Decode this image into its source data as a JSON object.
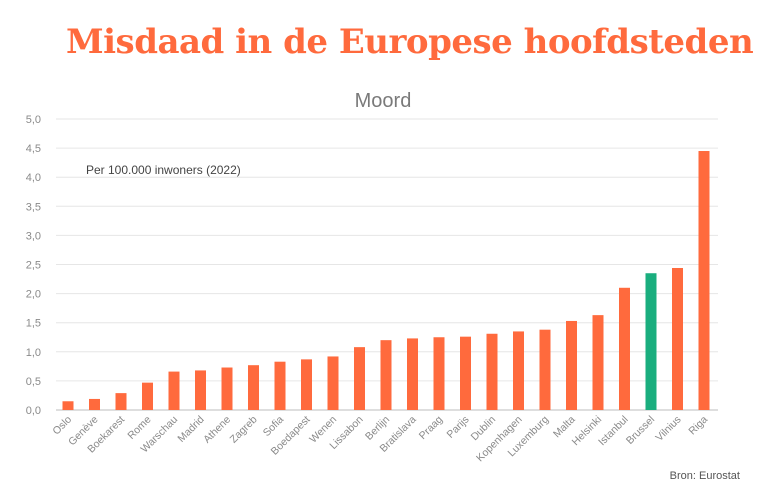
{
  "headline": "Misdaad in de Europese hoofdsteden",
  "source": "Bron: Eurostat",
  "colors": {
    "default_bar": "#ff6a3d",
    "highlight_bar": "#1aae7e",
    "headline": "#ff6a3d"
  },
  "chart_data": {
    "type": "bar",
    "title": "Moord",
    "annotation": "Per 100.000 inwoners (2022)",
    "xlabel": "",
    "ylabel": "",
    "ylim": [
      0,
      5
    ],
    "yticks": [
      "0,0",
      "0,5",
      "1,0",
      "1,5",
      "2,0",
      "2,5",
      "3,0",
      "3,5",
      "4,0",
      "4,5",
      "5,0"
    ],
    "grid": true,
    "highlight": "Brussel",
    "categories": [
      "Oslo",
      "Genève",
      "Boekarest",
      "Rome",
      "Warschau",
      "Madrid",
      "Athene",
      "Zagreb",
      "Sofia",
      "Boedapest",
      "Wenen",
      "Lissabon",
      "Berlijn",
      "Bratislava",
      "Praag",
      "Parijs",
      "Dublin",
      "Kopenhagen",
      "Luxemburg",
      "Malta",
      "Helsinki",
      "Istanbul",
      "Brussel",
      "Vilnius",
      "Riga"
    ],
    "values": [
      0.15,
      0.19,
      0.29,
      0.47,
      0.66,
      0.68,
      0.73,
      0.77,
      0.83,
      0.87,
      0.92,
      1.08,
      1.2,
      1.23,
      1.25,
      1.26,
      1.31,
      1.35,
      1.38,
      1.53,
      1.63,
      2.1,
      2.35,
      2.44,
      4.45
    ]
  }
}
